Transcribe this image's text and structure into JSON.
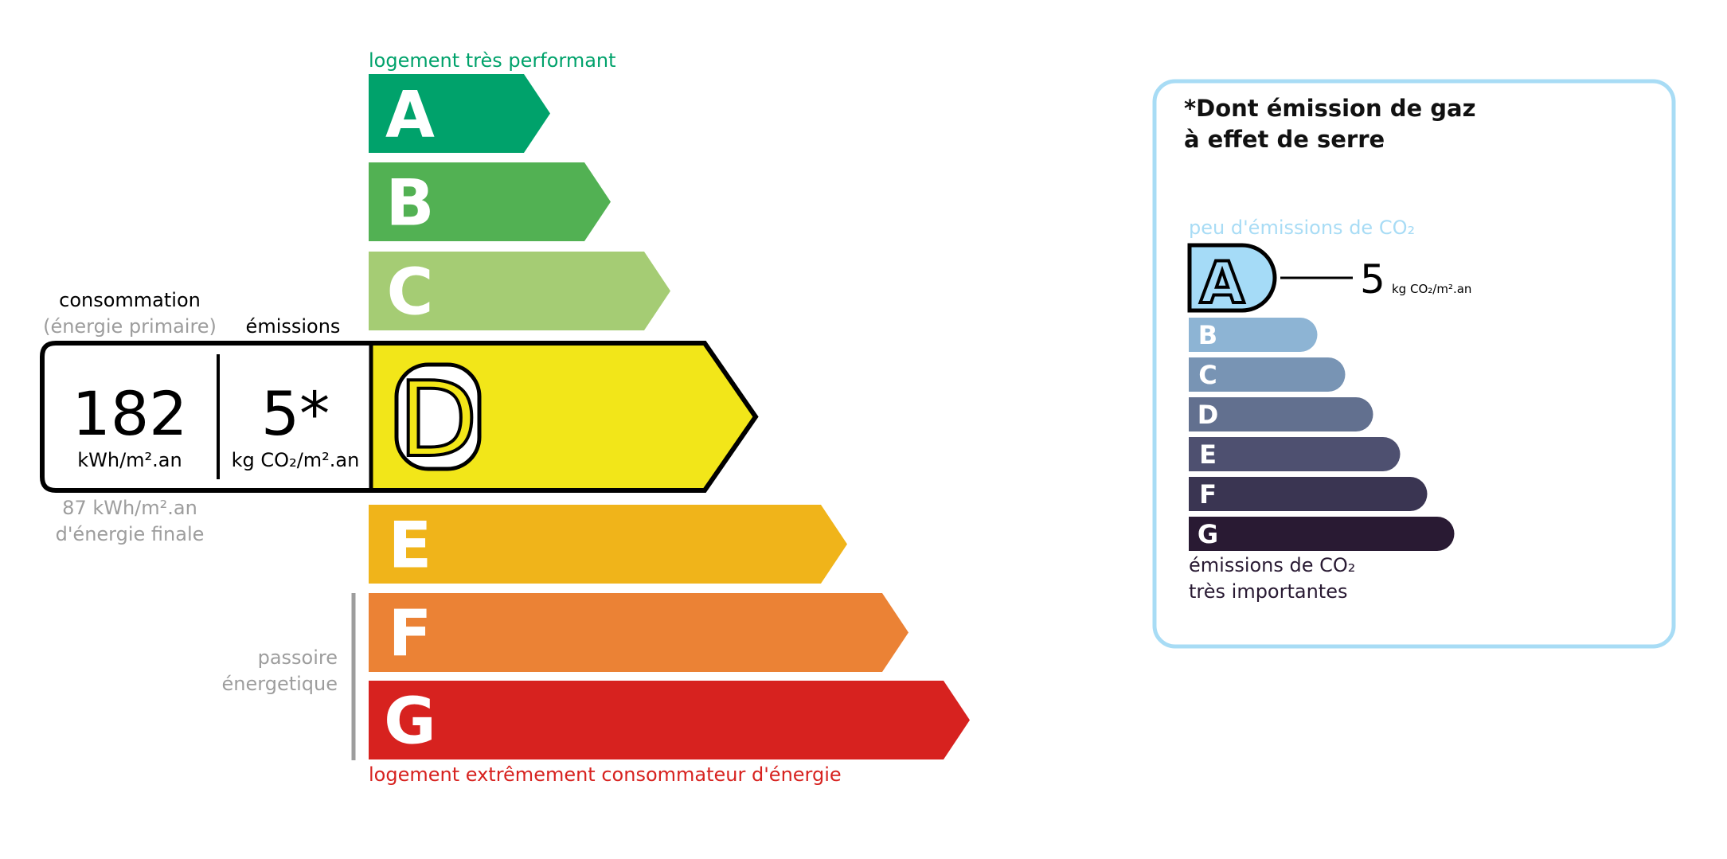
{
  "energy": {
    "top_label": "logement très performant",
    "bottom_label": "logement extrêmement consommateur d'énergie",
    "passoire_line1": "passoire",
    "passoire_line2": "énergetique",
    "classes": [
      {
        "letter": "A",
        "color": "#00a26b"
      },
      {
        "letter": "B",
        "color": "#52b153"
      },
      {
        "letter": "C",
        "color": "#a5cc74"
      },
      {
        "letter": "D",
        "color": "#f2e619"
      },
      {
        "letter": "E",
        "color": "#f0b41a"
      },
      {
        "letter": "F",
        "color": "#eb8235"
      },
      {
        "letter": "G",
        "color": "#d7221f"
      }
    ],
    "current_class": "D",
    "consumption_header": "consommation",
    "consumption_subheader": "(énergie primaire)",
    "emissions_header": "émissions",
    "consumption_value": "182",
    "consumption_unit": "kWh/m².an",
    "emissions_value": "5*",
    "emissions_unit": "kg CO₂/m².an",
    "final_energy_line1": "87 kWh/m².an",
    "final_energy_line2": "d'énergie finale",
    "top_color": "#00a26b",
    "bottom_color": "#d7221f",
    "muted_color": "#9d9d9d"
  },
  "ges": {
    "title_line1": "*Dont émission de gaz",
    "title_line2": "à effet de serre",
    "top_label": "peu d'émissions de CO₂",
    "bottom_line1": "émissions de CO₂",
    "bottom_line2": "très importantes",
    "current_class": "A",
    "value": "5",
    "unit": "kg CO₂/m².an",
    "border_color": "#a8dcf5",
    "classes": [
      {
        "letter": "A",
        "color": "#a5dbf7"
      },
      {
        "letter": "B",
        "color": "#8db4d4"
      },
      {
        "letter": "C",
        "color": "#7894b4"
      },
      {
        "letter": "D",
        "color": "#62708f"
      },
      {
        "letter": "E",
        "color": "#4e5070"
      },
      {
        "letter": "F",
        "color": "#3a3552"
      },
      {
        "letter": "G",
        "color": "#291a33"
      }
    ]
  }
}
